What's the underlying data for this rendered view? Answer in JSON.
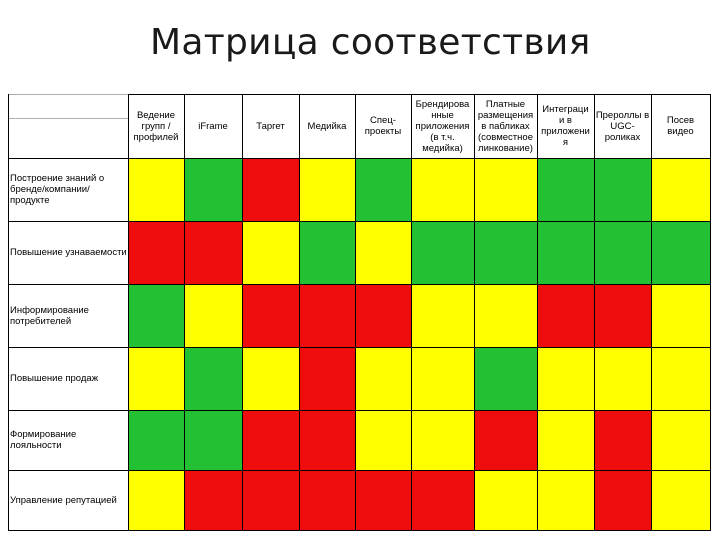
{
  "title": "Матрица соответствия",
  "columns": [
    "Ведение\nгрупп /\nпрофилей",
    "iFrame",
    "Таргет",
    "Медийка",
    "Спец-\nпроекты",
    "Брендирова\nнные\nприложения\n(в т.ч.\nмедийка)",
    "Платные\nразмещения\nв пабликах\n(совместное\nлинкование)",
    "Интеграци\nи в\nприложени\nя",
    "Прероллы в\nUGC-\nроликах",
    "Посев\nвидео"
  ],
  "rows": [
    {
      "label": "Построение знаний о бренде/компании/продукте",
      "cells": [
        "yellow",
        "green",
        "red",
        "yellow",
        "green",
        "yellow",
        "yellow",
        "green",
        "green",
        "yellow"
      ]
    },
    {
      "label": "Повышение узнаваемости",
      "cells": [
        "red",
        "red",
        "yellow",
        "green",
        "yellow",
        "green",
        "green",
        "green",
        "green",
        "green"
      ]
    },
    {
      "label": "Информирование потребителей",
      "cells": [
        "green",
        "yellow",
        "red",
        "red",
        "red",
        "yellow",
        "yellow",
        "red",
        "red",
        "yellow"
      ]
    },
    {
      "label": "Повышение продаж",
      "cells": [
        "yellow",
        "green",
        "yellow",
        "red",
        "yellow",
        "yellow",
        "green",
        "yellow",
        "yellow",
        "yellow"
      ]
    },
    {
      "label": "Формирование лояльности",
      "cells": [
        "green",
        "green",
        "red",
        "red",
        "yellow",
        "yellow",
        "red",
        "yellow",
        "red",
        "yellow"
      ]
    },
    {
      "label": "Управление репутацией",
      "cells": [
        "yellow",
        "red",
        "red",
        "red",
        "red",
        "red",
        "yellow",
        "yellow",
        "red",
        "yellow"
      ]
    }
  ],
  "colors": {
    "green": "#22c032",
    "yellow": "#ffff00",
    "red": "#ef0c0c"
  }
}
